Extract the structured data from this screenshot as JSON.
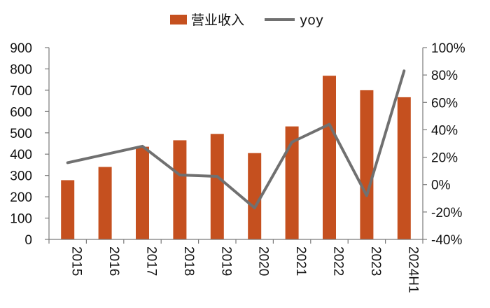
{
  "chart_data": {
    "type": "bar",
    "title": "",
    "xlabel": "",
    "ylabel": "",
    "categories": [
      "2015",
      "2016",
      "2017",
      "2018",
      "2019",
      "2020",
      "2021",
      "2022",
      "2023",
      "2024H1"
    ],
    "series": [
      {
        "name": "营业收入",
        "type": "bar",
        "axis": "left",
        "color": "#C5501F",
        "values": [
          278,
          340,
          435,
          465,
          495,
          405,
          530,
          768,
          700,
          667
        ]
      },
      {
        "name": "yoy",
        "type": "line",
        "axis": "right",
        "color": "#707070",
        "values": [
          16,
          22,
          28,
          7,
          6,
          -17,
          31,
          44,
          -8,
          83
        ]
      }
    ],
    "ylim_left": [
      0,
      900
    ],
    "yticks_left": [
      "0",
      "100",
      "200",
      "300",
      "400",
      "500",
      "600",
      "700",
      "800",
      "900"
    ],
    "ylim_right": [
      -40,
      100
    ],
    "yticks_right": [
      "-40%",
      "-20%",
      "0%",
      "20%",
      "40%",
      "60%",
      "80%",
      "100%"
    ],
    "grid": false,
    "legend_position": "top-center"
  }
}
